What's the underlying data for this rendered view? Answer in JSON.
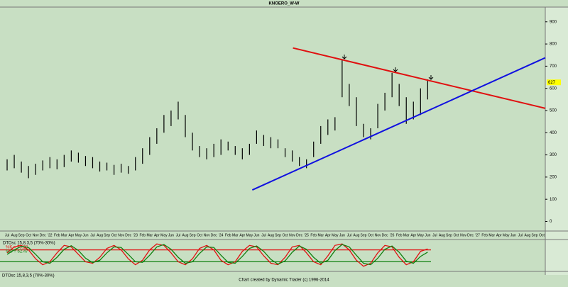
{
  "chart_data": [
    {
      "type": "ohlc",
      "title": "KNOERO_W-W",
      "footer": "Chart created by Dynamic Trader  (c)  1996-2014",
      "categories": [
        "Jul",
        "Aug",
        "Sep",
        "Oct",
        "Nov",
        "Dec",
        "'22",
        "Feb",
        "Mar",
        "Apr",
        "May",
        "Jun",
        "Jul",
        "Aug",
        "Sep",
        "Oct",
        "Nov",
        "Dec",
        "'23",
        "Feb",
        "Mar",
        "Apr",
        "May",
        "Jun",
        "Jul",
        "Aug",
        "Sep",
        "Oct",
        "Nov",
        "Dec",
        "'24",
        "Feb",
        "Mar",
        "Apr",
        "May",
        "Jun",
        "Jul",
        "Aug",
        "Sep",
        "Oct",
        "Nov",
        "Dec",
        "'25",
        "Feb",
        "Mar",
        "Apr",
        "May",
        "Jun",
        "Jul",
        "Aug",
        "Sep",
        "Oct",
        "Nov",
        "Dec",
        "'26",
        "Feb",
        "Mar",
        "Apr",
        "May",
        "Jun",
        "Jul",
        "Aug",
        "Sep",
        "Oct",
        "Nov",
        "Dec",
        "'27",
        "Feb",
        "Mar",
        "Apr",
        "May",
        "Jun",
        "Jul",
        "Aug",
        "Sep",
        "Oct"
      ],
      "low": [
        230,
        240,
        220,
        195,
        210,
        230,
        240,
        235,
        245,
        270,
        265,
        250,
        240,
        225,
        230,
        210,
        220,
        215,
        230,
        260,
        300,
        350,
        400,
        430,
        460,
        380,
        320,
        290,
        280,
        290,
        300,
        320,
        300,
        280,
        300,
        350,
        340,
        330,
        330,
        290,
        270,
        250,
        240,
        290,
        350,
        390,
        410,
        560,
        520,
        430,
        380,
        370,
        420,
        500,
        560,
        520,
        440,
        460,
        480,
        550,
        null,
        null,
        null,
        null,
        null,
        null,
        null,
        null,
        null,
        null,
        null,
        null,
        null,
        null,
        null,
        null
      ],
      "high": [
        280,
        300,
        270,
        250,
        260,
        275,
        290,
        280,
        300,
        320,
        310,
        295,
        290,
        270,
        265,
        255,
        260,
        250,
        290,
        330,
        380,
        420,
        480,
        500,
        540,
        480,
        400,
        340,
        330,
        350,
        370,
        360,
        340,
        330,
        350,
        410,
        390,
        380,
        370,
        330,
        320,
        290,
        280,
        360,
        430,
        460,
        470,
        730,
        620,
        560,
        440,
        420,
        530,
        580,
        670,
        620,
        560,
        540,
        600,
        640,
        null,
        null,
        null,
        null,
        null,
        null,
        null,
        null,
        null,
        null,
        null,
        null,
        null,
        null,
        null,
        null
      ],
      "color": "#000000",
      "last": 627,
      "ylim": [
        -40,
        960
      ],
      "yticks": [
        0,
        100,
        200,
        300,
        400,
        500,
        600,
        700,
        800,
        900
      ],
      "trend_lines": [
        {
          "color": "#e01010",
          "x": [
            40.1,
            75.5
          ],
          "y": [
            782,
            510
          ]
        },
        {
          "color": "#1010e0",
          "x": [
            34.4,
            75.5
          ],
          "y": [
            142,
            738
          ]
        }
      ]
    },
    {
      "type": "line",
      "title": "DTOsc 15,8,3,5 (70%-30%)",
      "tab": "DTOsc 15,8,3,5 (70%-30%)",
      "ylim": [
        0,
        100
      ],
      "levels": [
        {
          "value": 70,
          "color": "#e01010"
        },
        {
          "value": 30,
          "color": "#108010"
        }
      ],
      "series": [
        {
          "name": "%K = 73.28",
          "color": "#e01010",
          "values": [
            60,
            80,
            85,
            70,
            40,
            20,
            30,
            60,
            85,
            80,
            55,
            30,
            25,
            45,
            75,
            85,
            70,
            40,
            20,
            35,
            70,
            90,
            85,
            60,
            30,
            20,
            40,
            75,
            85,
            70,
            35,
            20,
            30,
            65,
            85,
            80,
            50,
            25,
            20,
            45,
            80,
            85,
            60,
            30,
            20,
            50,
            85,
            90,
            70,
            35,
            15,
            25,
            60,
            85,
            80,
            45,
            20,
            30,
            65,
            73.28
          ]
        },
        {
          "name": "%D = 62.47",
          "color": "#108010",
          "values": [
            55,
            70,
            82,
            78,
            55,
            30,
            25,
            45,
            72,
            84,
            68,
            42,
            27,
            35,
            60,
            80,
            78,
            55,
            30,
            28,
            52,
            80,
            88,
            72,
            45,
            25,
            30,
            58,
            80,
            78,
            52,
            28,
            25,
            48,
            75,
            83,
            65,
            38,
            22,
            33,
            62,
            83,
            72,
            45,
            25,
            35,
            68,
            88,
            80,
            52,
            25,
            20,
            42,
            72,
            83,
            62,
            32,
            25,
            48,
            62.47
          ]
        }
      ]
    }
  ]
}
